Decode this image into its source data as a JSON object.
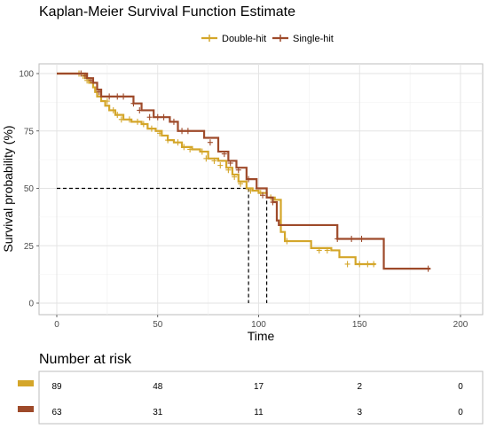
{
  "chart_data": {
    "type": "line",
    "title": "Kaplan-Meier Survival Function Estimate",
    "xlabel": "Time",
    "ylabel": "Survival probability (%)",
    "xlim": [
      0,
      210
    ],
    "ylim": [
      0,
      105
    ],
    "x_ticks": [
      0,
      50,
      100,
      150,
      200
    ],
    "y_ticks": [
      0,
      25,
      50,
      75,
      100
    ],
    "grid": true,
    "legend_position": "top",
    "median_line": {
      "y": 50,
      "x_values": [
        95,
        104
      ]
    },
    "series": [
      {
        "name": "Double-hit",
        "color": "#D4A62A",
        "steps": [
          [
            0,
            100
          ],
          [
            12,
            100
          ],
          [
            14,
            98
          ],
          [
            16,
            96
          ],
          [
            18,
            94
          ],
          [
            19,
            92
          ],
          [
            20,
            90
          ],
          [
            22,
            88
          ],
          [
            24,
            86
          ],
          [
            26,
            84
          ],
          [
            29,
            82
          ],
          [
            33,
            80
          ],
          [
            37,
            79
          ],
          [
            42,
            78
          ],
          [
            45,
            76
          ],
          [
            49,
            75
          ],
          [
            52,
            73
          ],
          [
            55,
            71
          ],
          [
            58,
            70
          ],
          [
            62,
            68
          ],
          [
            67,
            67
          ],
          [
            71,
            66
          ],
          [
            75,
            63
          ],
          [
            80,
            62
          ],
          [
            84,
            59
          ],
          [
            87,
            56
          ],
          [
            90,
            53
          ],
          [
            94,
            50
          ],
          [
            97,
            49
          ],
          [
            100,
            48
          ],
          [
            104,
            46
          ],
          [
            108,
            45
          ],
          [
            111,
            31
          ],
          [
            113,
            27
          ],
          [
            118,
            27
          ],
          [
            126,
            24
          ],
          [
            136,
            23
          ],
          [
            140,
            20
          ],
          [
            148,
            17
          ],
          [
            158,
            17
          ]
        ],
        "censored": [
          [
            11,
            100
          ],
          [
            13,
            99
          ],
          [
            15,
            97
          ],
          [
            18,
            96
          ],
          [
            22,
            90
          ],
          [
            25,
            88
          ],
          [
            28,
            84
          ],
          [
            30,
            82
          ],
          [
            32,
            80
          ],
          [
            36,
            80
          ],
          [
            40,
            79
          ],
          [
            43,
            78
          ],
          [
            47,
            76
          ],
          [
            51,
            74
          ],
          [
            55,
            71
          ],
          [
            60,
            70
          ],
          [
            63,
            68
          ],
          [
            66,
            67
          ],
          [
            72,
            66
          ],
          [
            74,
            63
          ],
          [
            78,
            62
          ],
          [
            81,
            60
          ],
          [
            85,
            58
          ],
          [
            88,
            55
          ],
          [
            91,
            52
          ],
          [
            96,
            49
          ],
          [
            101,
            48
          ],
          [
            106,
            46
          ],
          [
            114,
            27
          ],
          [
            130,
            23
          ],
          [
            134,
            23
          ],
          [
            144,
            17
          ],
          [
            150,
            17
          ],
          [
            154,
            17
          ],
          [
            157,
            17
          ]
        ]
      },
      {
        "name": "Single-hit",
        "color": "#9E4A2A",
        "steps": [
          [
            0,
            100
          ],
          [
            13,
            100
          ],
          [
            15,
            98
          ],
          [
            18,
            96
          ],
          [
            20,
            93
          ],
          [
            22,
            90
          ],
          [
            34,
            90
          ],
          [
            38,
            87
          ],
          [
            42,
            84
          ],
          [
            48,
            81
          ],
          [
            56,
            79
          ],
          [
            60,
            75
          ],
          [
            70,
            75
          ],
          [
            73,
            72
          ],
          [
            80,
            66
          ],
          [
            85,
            62
          ],
          [
            89,
            59
          ],
          [
            94,
            54
          ],
          [
            99,
            50
          ],
          [
            104,
            46
          ],
          [
            107,
            44
          ],
          [
            109,
            36
          ],
          [
            110,
            34
          ],
          [
            138,
            34
          ],
          [
            139,
            28
          ],
          [
            161,
            28
          ],
          [
            162,
            15
          ],
          [
            185,
            15
          ]
        ],
        "censored": [
          [
            12,
            100
          ],
          [
            14,
            99
          ],
          [
            17,
            97
          ],
          [
            21,
            92
          ],
          [
            26,
            90
          ],
          [
            30,
            90
          ],
          [
            33,
            90
          ],
          [
            38,
            87
          ],
          [
            41,
            84
          ],
          [
            46,
            81
          ],
          [
            50,
            81
          ],
          [
            53,
            81
          ],
          [
            58,
            79
          ],
          [
            62,
            75
          ],
          [
            65,
            75
          ],
          [
            76,
            70
          ],
          [
            83,
            65
          ],
          [
            86,
            61
          ],
          [
            90,
            58
          ],
          [
            95,
            54
          ],
          [
            102,
            47
          ],
          [
            107,
            44
          ],
          [
            139,
            28
          ],
          [
            146,
            28
          ],
          [
            151,
            28
          ],
          [
            184,
            15
          ]
        ]
      }
    ],
    "risk_table": {
      "title": "Number at risk",
      "times": [
        0,
        50,
        100,
        150,
        200
      ],
      "rows": [
        {
          "series": "Double-hit",
          "color": "#D4A62A",
          "values": [
            89,
            48,
            17,
            2,
            0
          ]
        },
        {
          "series": "Single-hit",
          "color": "#9E4A2A",
          "values": [
            63,
            31,
            11,
            3,
            0
          ]
        }
      ]
    }
  }
}
